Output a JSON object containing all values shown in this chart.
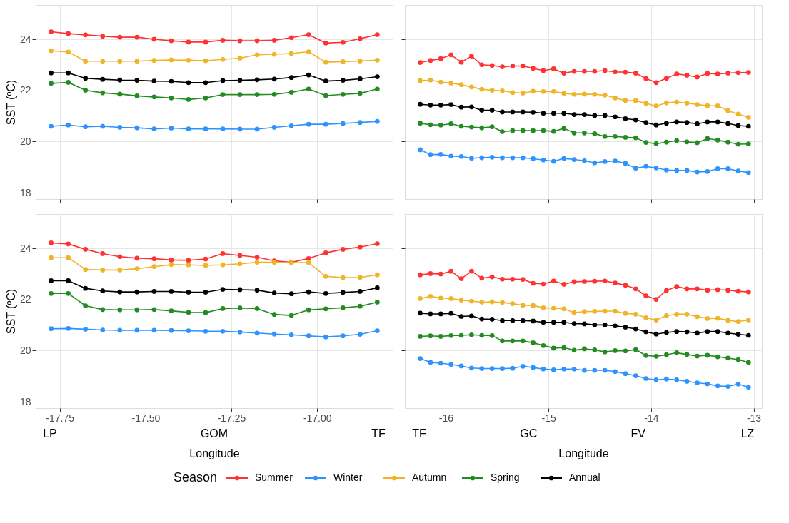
{
  "chart_data": [
    {
      "type": "line",
      "ylabel": "SST (ºC)",
      "x": [
        -17.775,
        -17.725,
        -17.675,
        -17.625,
        -17.575,
        -17.525,
        -17.475,
        -17.425,
        -17.375,
        -17.325,
        -17.275,
        -17.225,
        -17.175,
        -17.125,
        -17.075,
        -17.025,
        -16.975,
        -16.925,
        -16.875,
        -16.825
      ],
      "xlim": [
        -17.82,
        -16.78
      ],
      "xticks": [
        -17.75,
        -17.5,
        -17.25,
        -17.0
      ],
      "ylim": [
        17.75,
        25.35
      ],
      "yticks": [
        18,
        20,
        22,
        24
      ],
      "tick_labels": "y",
      "grid": true,
      "marker": "circle",
      "line_style": "solid",
      "legend": "bottom",
      "legend_title": "Season",
      "series": [
        {
          "name": "Summer",
          "color": "#ff3232",
          "values": [
            24.3,
            24.23,
            24.18,
            24.13,
            24.09,
            24.09,
            24.01,
            23.95,
            23.9,
            23.9,
            23.97,
            23.95,
            23.95,
            23.97,
            24.07,
            24.19,
            23.86,
            23.89,
            24.03,
            24.19
          ]
        },
        {
          "name": "Winter",
          "color": "#2f93ff",
          "values": [
            20.6,
            20.65,
            20.58,
            20.6,
            20.56,
            20.54,
            20.5,
            20.53,
            20.5,
            20.5,
            20.5,
            20.49,
            20.49,
            20.56,
            20.62,
            20.68,
            20.68,
            20.71,
            20.75,
            20.79
          ]
        },
        {
          "name": "Autumn",
          "color": "#f0b428",
          "values": [
            23.56,
            23.51,
            23.15,
            23.15,
            23.15,
            23.15,
            23.18,
            23.2,
            23.19,
            23.17,
            23.22,
            23.27,
            23.4,
            23.42,
            23.45,
            23.52,
            23.11,
            23.13,
            23.16,
            23.19
          ]
        },
        {
          "name": "Spring",
          "color": "#238b22",
          "values": [
            22.28,
            22.32,
            22.01,
            21.91,
            21.86,
            21.79,
            21.75,
            21.71,
            21.65,
            21.71,
            21.84,
            21.84,
            21.84,
            21.85,
            21.93,
            22.06,
            21.8,
            21.85,
            21.89,
            22.06
          ]
        },
        {
          "name": "Annual",
          "color": "#000000",
          "values": [
            22.69,
            22.69,
            22.48,
            22.44,
            22.41,
            22.4,
            22.37,
            22.36,
            22.31,
            22.31,
            22.39,
            22.4,
            22.42,
            22.45,
            22.51,
            22.61,
            22.37,
            22.4,
            22.46,
            22.54
          ]
        }
      ]
    },
    {
      "type": "line",
      "x": [
        -16.25,
        -16.15,
        -16.05,
        -15.95,
        -15.85,
        -15.75,
        -15.65,
        -15.55,
        -15.45,
        -15.35,
        -15.25,
        -15.15,
        -15.05,
        -14.95,
        -14.85,
        -14.75,
        -14.65,
        -14.55,
        -14.45,
        -14.35,
        -14.25,
        -14.15,
        -14.05,
        -13.95,
        -13.85,
        -13.75,
        -13.65,
        -13.55,
        -13.45,
        -13.35,
        -13.25,
        -13.15,
        -13.05
      ],
      "xlim": [
        -16.4,
        -12.92
      ],
      "xticks": [
        -16,
        -15,
        -14,
        -13
      ],
      "ylim": [
        17.75,
        25.35
      ],
      "yticks": [
        18,
        20,
        22,
        24
      ],
      "tick_labels": false,
      "grid": true,
      "marker": "circle",
      "line_style": "solid",
      "legend": "bottom",
      "series": [
        {
          "name": "Summer",
          "color": "#ff3232",
          "values": [
            23.1,
            23.18,
            23.25,
            23.4,
            23.11,
            23.35,
            23.01,
            22.98,
            22.93,
            22.96,
            22.96,
            22.87,
            22.78,
            22.85,
            22.68,
            22.75,
            22.75,
            22.75,
            22.78,
            22.73,
            22.72,
            22.68,
            22.47,
            22.31,
            22.48,
            22.65,
            22.6,
            22.53,
            22.67,
            22.65,
            22.68,
            22.7,
            22.71
          ]
        },
        {
          "name": "Winter",
          "color": "#2f93ff",
          "values": [
            19.68,
            19.49,
            19.5,
            19.43,
            19.42,
            19.35,
            19.37,
            19.39,
            19.37,
            19.37,
            19.37,
            19.33,
            19.28,
            19.23,
            19.34,
            19.3,
            19.25,
            19.17,
            19.22,
            19.24,
            19.15,
            18.96,
            19.03,
            18.97,
            18.89,
            18.87,
            18.87,
            18.81,
            18.83,
            18.94,
            18.94,
            18.85,
            18.79
          ]
        },
        {
          "name": "Autumn",
          "color": "#f0b428",
          "values": [
            22.39,
            22.41,
            22.33,
            22.29,
            22.23,
            22.14,
            22.05,
            22.01,
            21.99,
            21.92,
            21.9,
            21.97,
            21.96,
            21.96,
            21.89,
            21.85,
            21.86,
            21.85,
            21.82,
            21.71,
            21.61,
            21.6,
            21.5,
            21.39,
            21.52,
            21.55,
            21.51,
            21.45,
            21.41,
            21.4,
            21.21,
            21.08,
            20.95
          ]
        },
        {
          "name": "Spring",
          "color": "#238b22",
          "values": [
            20.72,
            20.66,
            20.65,
            20.7,
            20.6,
            20.57,
            20.54,
            20.58,
            20.39,
            20.43,
            20.43,
            20.43,
            20.43,
            20.4,
            20.52,
            20.34,
            20.34,
            20.31,
            20.2,
            20.2,
            20.17,
            20.15,
            19.97,
            19.92,
            19.98,
            20.04,
            19.99,
            19.96,
            20.12,
            20.06,
            19.98,
            19.9,
            19.91
          ]
        },
        {
          "name": "Annual",
          "color": "#000000",
          "values": [
            21.46,
            21.43,
            21.43,
            21.45,
            21.35,
            21.36,
            21.23,
            21.23,
            21.16,
            21.16,
            21.16,
            21.15,
            21.11,
            21.11,
            21.11,
            21.06,
            21.06,
            21.02,
            21.02,
            20.97,
            20.9,
            20.85,
            20.75,
            20.65,
            20.72,
            20.77,
            20.75,
            20.7,
            20.77,
            20.77,
            20.71,
            20.63,
            20.6
          ]
        }
      ]
    },
    {
      "type": "line",
      "ylabel": "SST (ºC)",
      "xlabel": "Longitude",
      "x": [
        -17.775,
        -17.725,
        -17.675,
        -17.625,
        -17.575,
        -17.525,
        -17.475,
        -17.425,
        -17.375,
        -17.325,
        -17.275,
        -17.225,
        -17.175,
        -17.125,
        -17.075,
        -17.025,
        -16.975,
        -16.925,
        -16.875,
        -16.825
      ],
      "xlim": [
        -17.82,
        -16.78
      ],
      "xticks": [
        -17.75,
        {
          "value": -17.5,
          "label": "-17.50"
        },
        -17.25,
        {
          "value": -17.0,
          "label": "-17.00"
        }
      ],
      "ylim": [
        17.75,
        25.35
      ],
      "yticks": [
        18,
        20,
        22,
        24
      ],
      "grid": true,
      "marker": "circle",
      "line_style": "solid",
      "legend": "bottom",
      "annotations": [
        "LP",
        "GOM",
        "TF"
      ],
      "series": [
        {
          "name": "Summer",
          "color": "#ff3232",
          "values": [
            24.22,
            24.18,
            23.97,
            23.8,
            23.68,
            23.62,
            23.6,
            23.55,
            23.54,
            23.59,
            23.8,
            23.73,
            23.66,
            23.52,
            23.46,
            23.61,
            23.83,
            23.97,
            24.06,
            24.19
          ]
        },
        {
          "name": "Winter",
          "color": "#2f93ff",
          "values": [
            20.86,
            20.87,
            20.84,
            20.81,
            20.8,
            20.8,
            20.8,
            20.79,
            20.78,
            20.76,
            20.76,
            20.73,
            20.69,
            20.65,
            20.62,
            20.58,
            20.54,
            20.58,
            20.64,
            20.78
          ]
        },
        {
          "name": "Autumn",
          "color": "#f0b428",
          "values": [
            23.64,
            23.64,
            23.18,
            23.16,
            23.16,
            23.21,
            23.29,
            23.37,
            23.36,
            23.34,
            23.36,
            23.4,
            23.46,
            23.46,
            23.45,
            23.45,
            22.91,
            22.86,
            22.87,
            22.97
          ]
        },
        {
          "name": "Spring",
          "color": "#238b22",
          "values": [
            22.24,
            22.24,
            21.76,
            21.61,
            21.6,
            21.6,
            21.61,
            21.56,
            21.5,
            21.49,
            21.65,
            21.67,
            21.65,
            21.42,
            21.38,
            21.6,
            21.64,
            21.68,
            21.74,
            21.9
          ]
        },
        {
          "name": "Annual",
          "color": "#000000",
          "values": [
            22.74,
            22.74,
            22.44,
            22.34,
            22.3,
            22.3,
            22.32,
            22.32,
            22.29,
            22.29,
            22.4,
            22.39,
            22.37,
            22.26,
            22.23,
            22.3,
            22.24,
            22.28,
            22.32,
            22.46
          ]
        }
      ]
    },
    {
      "type": "line",
      "xlabel": "Longitude",
      "x": [
        -16.25,
        -16.15,
        -16.05,
        -15.95,
        -15.85,
        -15.75,
        -15.65,
        -15.55,
        -15.45,
        -15.35,
        -15.25,
        -15.15,
        -15.05,
        -14.95,
        -14.85,
        -14.75,
        -14.65,
        -14.55,
        -14.45,
        -14.35,
        -14.25,
        -14.15,
        -14.05,
        -13.95,
        -13.85,
        -13.75,
        -13.65,
        -13.55,
        -13.45,
        -13.35,
        -13.25,
        -13.15,
        -13.05
      ],
      "xlim": [
        -16.4,
        -12.92
      ],
      "xticks": [
        -16,
        -15,
        -14,
        -13
      ],
      "ylim": [
        17.75,
        25.35
      ],
      "yticks": [
        18,
        20,
        22,
        24
      ],
      "tick_labels": "x",
      "grid": true,
      "marker": "circle",
      "line_style": "solid",
      "legend": "bottom",
      "annotations": [
        "TF",
        "GC",
        "FV",
        "LZ"
      ],
      "series": [
        {
          "name": "Summer",
          "color": "#ff3232",
          "values": [
            22.97,
            23.02,
            23.0,
            23.11,
            22.82,
            23.11,
            22.84,
            22.89,
            22.8,
            22.8,
            22.79,
            22.64,
            22.61,
            22.73,
            22.6,
            22.7,
            22.71,
            22.72,
            22.73,
            22.65,
            22.56,
            22.42,
            22.15,
            22.01,
            22.36,
            22.51,
            22.42,
            22.42,
            22.37,
            22.39,
            22.37,
            22.33,
            22.3
          ]
        },
        {
          "name": "Winter",
          "color": "#2f93ff",
          "values": [
            19.69,
            19.54,
            19.51,
            19.46,
            19.4,
            19.32,
            19.3,
            19.3,
            19.3,
            19.31,
            19.39,
            19.34,
            19.28,
            19.25,
            19.28,
            19.28,
            19.23,
            19.23,
            19.23,
            19.18,
            19.1,
            19.02,
            18.91,
            18.86,
            18.89,
            18.86,
            18.8,
            18.74,
            18.7,
            18.62,
            18.6,
            18.69,
            18.57
          ]
        },
        {
          "name": "Autumn",
          "color": "#f0b428",
          "values": [
            22.04,
            22.13,
            22.06,
            22.04,
            21.98,
            21.94,
            21.9,
            21.91,
            21.89,
            21.84,
            21.78,
            21.77,
            21.68,
            21.66,
            21.64,
            21.49,
            21.53,
            21.54,
            21.55,
            21.55,
            21.46,
            21.43,
            21.29,
            21.2,
            21.37,
            21.43,
            21.43,
            21.33,
            21.26,
            21.27,
            21.19,
            21.14,
            21.2
          ]
        },
        {
          "name": "Spring",
          "color": "#238b22",
          "values": [
            20.56,
            20.58,
            20.56,
            20.59,
            20.6,
            20.62,
            20.6,
            20.59,
            20.38,
            20.38,
            20.38,
            20.31,
            20.2,
            20.1,
            20.12,
            20.02,
            20.07,
            20.03,
            19.95,
            20.0,
            19.99,
            20.04,
            19.81,
            19.78,
            19.84,
            19.92,
            19.85,
            19.79,
            19.82,
            19.76,
            19.71,
            19.65,
            19.54
          ]
        },
        {
          "name": "Annual",
          "color": "#000000",
          "values": [
            21.47,
            21.44,
            21.44,
            21.46,
            21.34,
            21.36,
            21.24,
            21.23,
            21.18,
            21.18,
            21.18,
            21.16,
            21.11,
            21.11,
            21.11,
            21.06,
            21.05,
            21.01,
            21.01,
            20.97,
            20.92,
            20.85,
            20.74,
            20.65,
            20.71,
            20.75,
            20.74,
            20.69,
            20.75,
            20.75,
            20.69,
            20.64,
            20.6
          ]
        }
      ]
    }
  ]
}
